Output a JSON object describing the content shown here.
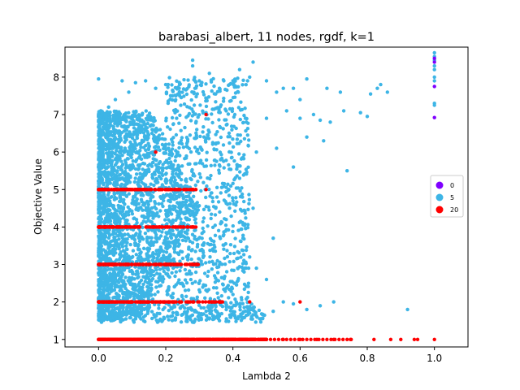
{
  "chart_data": {
    "type": "scatter",
    "title": "barabasi_albert, 11 nodes, rgdf, k=1",
    "xlabel": "Lambda 2",
    "ylabel": "Objective Value",
    "xlim": [
      -0.1,
      1.1
    ],
    "ylim": [
      0.8,
      8.8
    ],
    "xticks": [
      "0.0",
      "0.2",
      "0.4",
      "0.6",
      "0.8",
      "1.0"
    ],
    "yticks": [
      "1",
      "2",
      "3",
      "4",
      "5",
      "6",
      "7",
      "8"
    ],
    "grid": false,
    "legend": {
      "placement": "right",
      "entries": [
        {
          "label": "0",
          "color": "#7f00ff"
        },
        {
          "label": "5",
          "color": "#3db5e6"
        },
        {
          "label": "20",
          "color": "#ff0000"
        }
      ]
    },
    "series": [
      {
        "name": "5",
        "color": "#3db5e6",
        "description_points": [
          [
            0.0,
            7.95
          ],
          [
            0.03,
            7.2
          ],
          [
            0.05,
            7.4
          ],
          [
            0.07,
            7.9
          ],
          [
            0.09,
            7.6
          ],
          [
            0.11,
            7.85
          ],
          [
            0.14,
            7.9
          ],
          [
            0.17,
            7.7
          ],
          [
            0.2,
            7.8
          ],
          [
            0.22,
            7.5
          ],
          [
            0.24,
            7.7
          ],
          [
            0.28,
            8.45
          ],
          [
            0.28,
            8.3
          ],
          [
            0.3,
            7.9
          ],
          [
            0.33,
            8.1
          ],
          [
            0.36,
            7.7
          ],
          [
            0.4,
            7.9
          ],
          [
            0.42,
            8.2
          ],
          [
            0.45,
            8.0
          ],
          [
            0.46,
            8.4
          ],
          [
            0.5,
            7.9
          ],
          [
            0.53,
            7.6
          ],
          [
            0.55,
            7.7
          ],
          [
            0.58,
            7.7
          ],
          [
            0.6,
            7.4
          ],
          [
            0.62,
            7.95
          ],
          [
            0.68,
            7.7
          ],
          [
            0.72,
            7.6
          ],
          [
            0.81,
            7.55
          ],
          [
            0.83,
            7.7
          ],
          [
            0.84,
            7.8
          ],
          [
            0.86,
            7.6
          ],
          [
            0.32,
            7.05
          ],
          [
            0.38,
            7.1
          ],
          [
            0.44,
            6.8
          ],
          [
            0.5,
            6.9
          ],
          [
            0.56,
            7.1
          ],
          [
            0.6,
            6.9
          ],
          [
            0.64,
            7.0
          ],
          [
            0.66,
            6.85
          ],
          [
            0.69,
            6.8
          ],
          [
            0.73,
            7.1
          ],
          [
            0.78,
            7.05
          ],
          [
            0.8,
            6.95
          ],
          [
            0.62,
            6.4
          ],
          [
            0.67,
            6.3
          ],
          [
            0.58,
            5.6
          ],
          [
            0.74,
            5.5
          ],
          [
            0.53,
            6.1
          ],
          [
            0.47,
            6.0
          ],
          [
            0.42,
            5.3
          ],
          [
            0.46,
            4.5
          ],
          [
            0.4,
            4.7
          ],
          [
            0.38,
            4.2
          ],
          [
            0.43,
            3.7
          ],
          [
            0.52,
            3.7
          ],
          [
            0.45,
            3.2
          ],
          [
            0.47,
            2.9
          ],
          [
            0.5,
            2.6
          ],
          [
            0.55,
            2.0
          ],
          [
            0.58,
            1.95
          ],
          [
            0.62,
            1.8
          ],
          [
            0.66,
            1.9
          ],
          [
            0.7,
            2.0
          ],
          [
            0.52,
            1.75
          ],
          [
            0.45,
            1.7
          ],
          [
            0.4,
            2.2
          ],
          [
            0.36,
            1.5
          ],
          [
            0.48,
            1.55
          ],
          [
            0.92,
            1.8
          ],
          [
            1.0,
            8.65
          ],
          [
            1.0,
            8.55
          ],
          [
            1.0,
            8.45
          ],
          [
            1.0,
            8.3
          ],
          [
            1.0,
            8.2
          ],
          [
            1.0,
            8.0
          ],
          [
            1.0,
            7.9
          ],
          [
            1.0,
            7.3
          ],
          [
            1.0,
            7.25
          ]
        ]
      },
      {
        "name": "20",
        "color": "#ff0000",
        "description_points": [
          [
            0.0,
            1.0
          ],
          [
            0.1,
            1.0
          ],
          [
            0.2,
            1.0
          ],
          [
            0.3,
            1.0
          ],
          [
            0.4,
            1.0
          ],
          [
            0.5,
            1.0
          ],
          [
            0.55,
            1.0
          ],
          [
            0.6,
            1.0
          ],
          [
            0.65,
            1.0
          ],
          [
            0.7,
            1.0
          ],
          [
            0.75,
            1.0
          ],
          [
            0.82,
            1.0
          ],
          [
            0.87,
            1.0
          ],
          [
            0.9,
            1.0
          ],
          [
            0.94,
            1.0
          ],
          [
            0.95,
            1.0
          ],
          [
            1.0,
            1.0
          ],
          [
            0.0,
            2.0
          ],
          [
            0.1,
            2.0
          ],
          [
            0.2,
            2.0
          ],
          [
            0.3,
            2.0
          ],
          [
            0.36,
            2.0
          ],
          [
            0.45,
            2.0
          ],
          [
            0.6,
            2.0
          ],
          [
            0.0,
            3.0
          ],
          [
            0.1,
            3.0
          ],
          [
            0.2,
            3.0
          ],
          [
            0.29,
            3.0
          ],
          [
            0.0,
            4.0
          ],
          [
            0.1,
            4.0
          ],
          [
            0.2,
            4.0
          ],
          [
            0.28,
            4.0
          ],
          [
            0.0,
            5.0
          ],
          [
            0.1,
            5.0
          ],
          [
            0.2,
            5.0
          ],
          [
            0.27,
            5.0
          ],
          [
            0.32,
            5.0
          ],
          [
            0.17,
            6.0
          ],
          [
            0.32,
            7.0
          ]
        ]
      },
      {
        "name": "0",
        "color": "#7f00ff",
        "description_points": [
          [
            1.0,
            8.5
          ],
          [
            1.0,
            8.4
          ],
          [
            1.0,
            7.75
          ],
          [
            1.0,
            6.92
          ]
        ]
      }
    ]
  }
}
